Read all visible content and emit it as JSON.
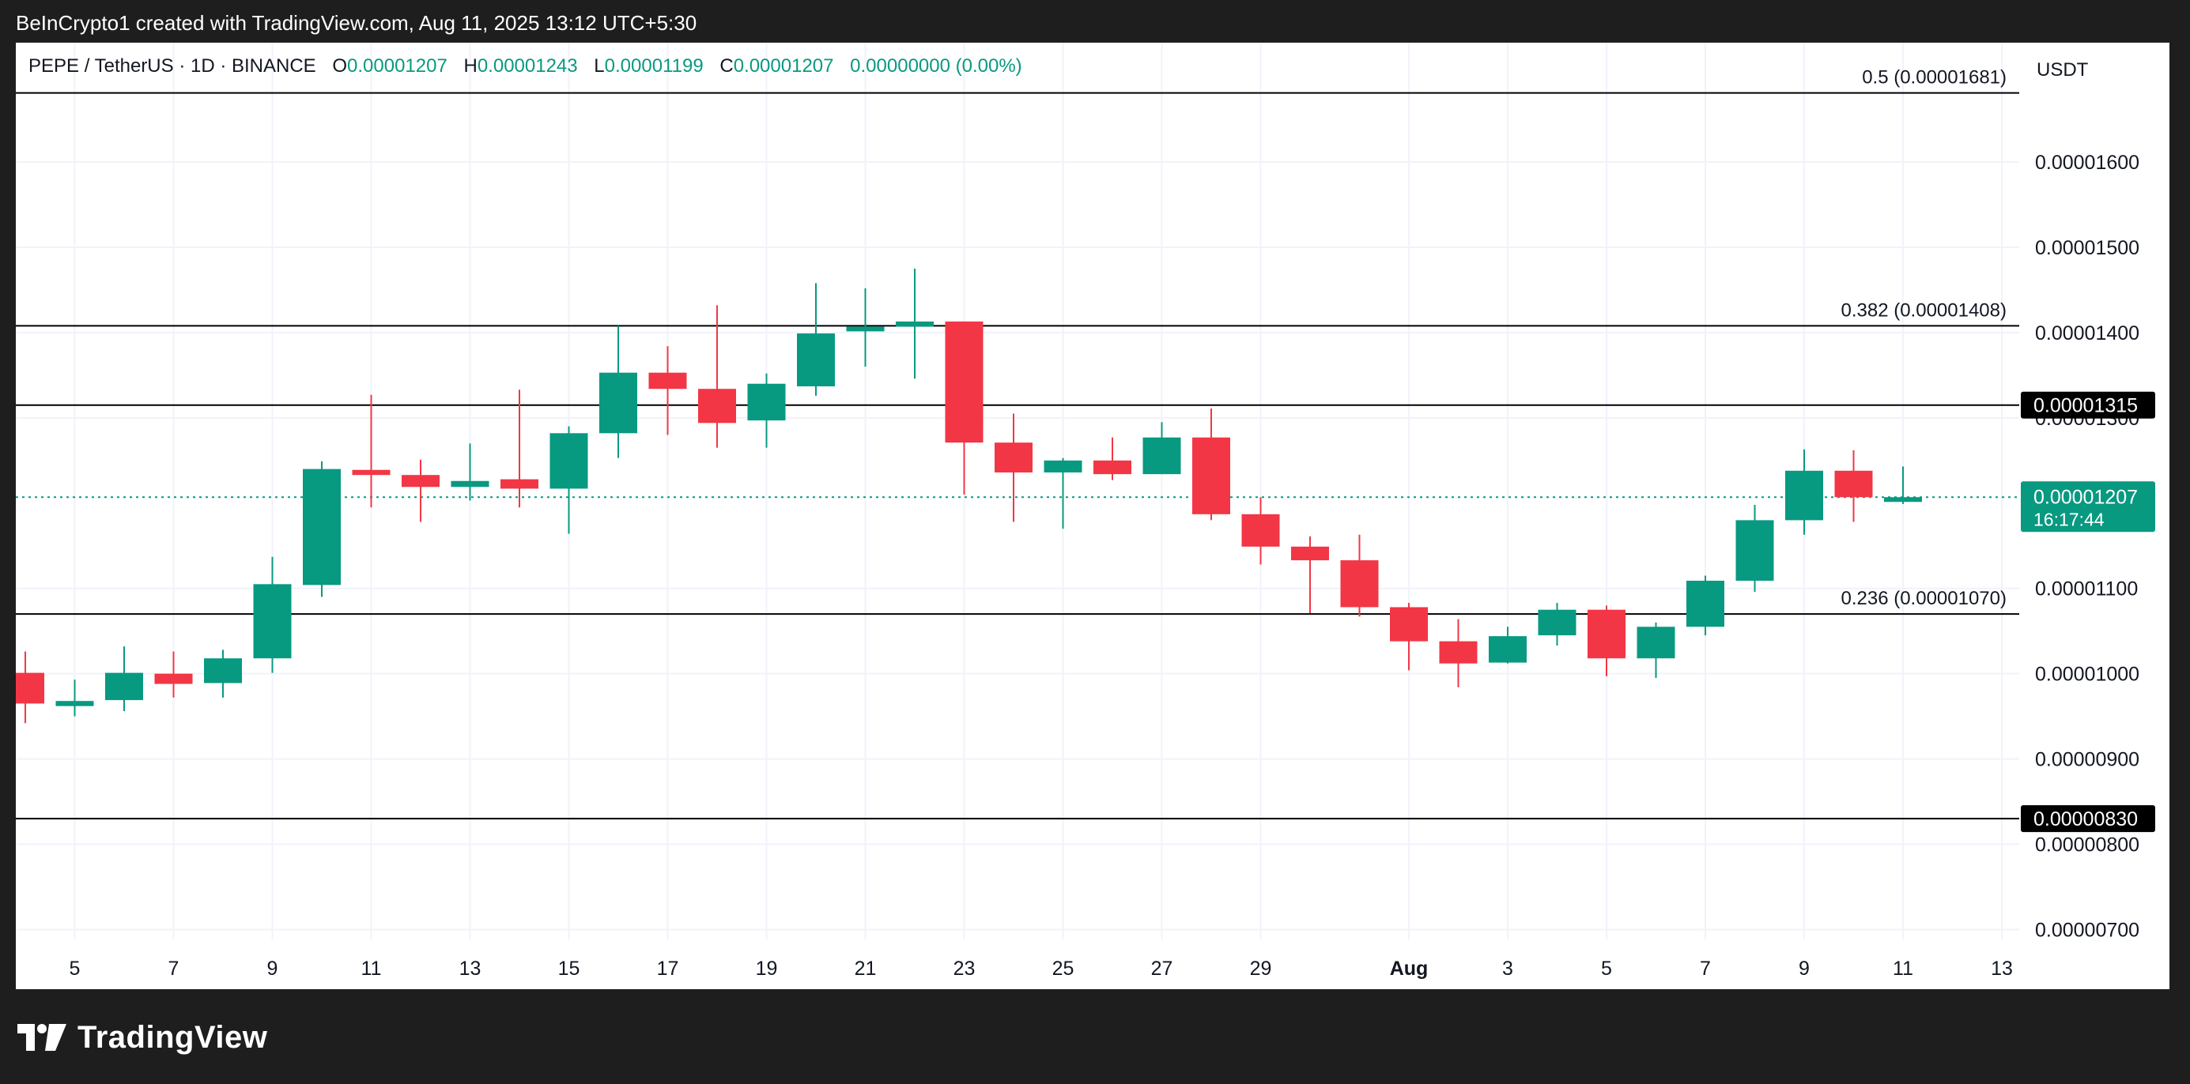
{
  "caption": "BeInCrypto1 created with TradingView.com, Aug 11, 2025 13:12 UTC+5:30",
  "legend": {
    "symbol": "PEPE / TetherUS · 1D · BINANCE",
    "o_label": "O",
    "o_value": "0.00001207",
    "h_label": "H",
    "h_value": "0.00001243",
    "l_label": "L",
    "l_value": "0.00001199",
    "c_label": "C",
    "c_value": "0.00001207",
    "change": "0.00000000 (0.00%)"
  },
  "brand": {
    "name": "TradingView",
    "icon": "tradingview-logo-icon"
  },
  "colors": {
    "up": "#089981",
    "down": "#f23645",
    "grid": "#f0f3fa",
    "text": "#131722",
    "background": "#ffffff",
    "frame": "#1e1e1e"
  },
  "chart_data": {
    "type": "candlestick",
    "title": "",
    "xlabel": "",
    "ylabel": "",
    "currency_label": "USDT",
    "ylim": [
      6.3e-06,
      1.74e-05
    ],
    "grid": true,
    "y_ticks": [
      "0.00001600",
      "0.00001500",
      "0.00001400",
      "0.00001300",
      "0.00001100",
      "0.00001000",
      "0.00000900",
      "0.00000800",
      "0.00000700"
    ],
    "x_ticks": [
      {
        "day": 1,
        "label": "5"
      },
      {
        "day": 3,
        "label": "7"
      },
      {
        "day": 5,
        "label": "9"
      },
      {
        "day": 7,
        "label": "11"
      },
      {
        "day": 9,
        "label": "13"
      },
      {
        "day": 11,
        "label": "15"
      },
      {
        "day": 13,
        "label": "17"
      },
      {
        "day": 15,
        "label": "19"
      },
      {
        "day": 17,
        "label": "21"
      },
      {
        "day": 19,
        "label": "23"
      },
      {
        "day": 21,
        "label": "25"
      },
      {
        "day": 23,
        "label": "27"
      },
      {
        "day": 25,
        "label": "29"
      },
      {
        "day": 28,
        "label": "Aug"
      },
      {
        "day": 30,
        "label": "3"
      },
      {
        "day": 32,
        "label": "5"
      },
      {
        "day": 34,
        "label": "7"
      },
      {
        "day": 36,
        "label": "9"
      },
      {
        "day": 38,
        "label": "11"
      },
      {
        "day": 40,
        "label": "13"
      }
    ],
    "candles": [
      {
        "day": 0,
        "o": 1.001e-05,
        "h": 1.026e-05,
        "l": 9.42e-06,
        "c": 9.65e-06
      },
      {
        "day": 1,
        "o": 9.62e-06,
        "h": 9.93e-06,
        "l": 9.5e-06,
        "c": 9.68e-06
      },
      {
        "day": 2,
        "o": 9.69e-06,
        "h": 1.032e-05,
        "l": 9.56e-06,
        "c": 1.001e-05
      },
      {
        "day": 3,
        "o": 1e-05,
        "h": 1.026e-05,
        "l": 9.72e-06,
        "c": 9.88e-06
      },
      {
        "day": 4,
        "o": 9.89e-06,
        "h": 1.028e-05,
        "l": 9.72e-06,
        "c": 1.018e-05
      },
      {
        "day": 5,
        "o": 1.018e-05,
        "h": 1.137e-05,
        "l": 1.001e-05,
        "c": 1.105e-05
      },
      {
        "day": 6,
        "o": 1.104e-05,
        "h": 1.249e-05,
        "l": 1.09e-05,
        "c": 1.24e-05
      },
      {
        "day": 7,
        "o": 1.239e-05,
        "h": 1.327e-05,
        "l": 1.195e-05,
        "c": 1.233e-05
      },
      {
        "day": 8,
        "o": 1.233e-05,
        "h": 1.251e-05,
        "l": 1.178e-05,
        "c": 1.219e-05
      },
      {
        "day": 9,
        "o": 1.219e-05,
        "h": 1.27e-05,
        "l": 1.203e-05,
        "c": 1.226e-05
      },
      {
        "day": 10,
        "o": 1.228e-05,
        "h": 1.333e-05,
        "l": 1.195e-05,
        "c": 1.217e-05
      },
      {
        "day": 11,
        "o": 1.217e-05,
        "h": 1.29e-05,
        "l": 1.164e-05,
        "c": 1.282e-05
      },
      {
        "day": 12,
        "o": 1.282e-05,
        "h": 1.408e-05,
        "l": 1.253e-05,
        "c": 1.353e-05
      },
      {
        "day": 13,
        "o": 1.353e-05,
        "h": 1.384e-05,
        "l": 1.28e-05,
        "c": 1.334e-05
      },
      {
        "day": 14,
        "o": 1.334e-05,
        "h": 1.432e-05,
        "l": 1.265e-05,
        "c": 1.294e-05
      },
      {
        "day": 15,
        "o": 1.297e-05,
        "h": 1.352e-05,
        "l": 1.265e-05,
        "c": 1.34e-05
      },
      {
        "day": 16,
        "o": 1.337e-05,
        "h": 1.458e-05,
        "l": 1.326e-05,
        "c": 1.399e-05
      },
      {
        "day": 17,
        "o": 1.402e-05,
        "h": 1.452e-05,
        "l": 1.36e-05,
        "c": 1.407e-05
      },
      {
        "day": 18,
        "o": 1.407e-05,
        "h": 1.475e-05,
        "l": 1.346e-05,
        "c": 1.413e-05
      },
      {
        "day": 19,
        "o": 1.413e-05,
        "h": 1.413e-05,
        "l": 1.21e-05,
        "c": 1.271e-05
      },
      {
        "day": 20,
        "o": 1.271e-05,
        "h": 1.305e-05,
        "l": 1.178e-05,
        "c": 1.236e-05
      },
      {
        "day": 21,
        "o": 1.236e-05,
        "h": 1.253e-05,
        "l": 1.17e-05,
        "c": 1.25e-05
      },
      {
        "day": 22,
        "o": 1.25e-05,
        "h": 1.277e-05,
        "l": 1.227e-05,
        "c": 1.234e-05
      },
      {
        "day": 23,
        "o": 1.234e-05,
        "h": 1.295e-05,
        "l": 1.234e-05,
        "c": 1.277e-05
      },
      {
        "day": 24,
        "o": 1.277e-05,
        "h": 1.311e-05,
        "l": 1.18e-05,
        "c": 1.187e-05
      },
      {
        "day": 25,
        "o": 1.187e-05,
        "h": 1.207e-05,
        "l": 1.128e-05,
        "c": 1.149e-05
      },
      {
        "day": 26,
        "o": 1.149e-05,
        "h": 1.161e-05,
        "l": 1.071e-05,
        "c": 1.133e-05
      },
      {
        "day": 27,
        "o": 1.133e-05,
        "h": 1.163e-05,
        "l": 1.067e-05,
        "c": 1.078e-05
      },
      {
        "day": 28,
        "o": 1.078e-05,
        "h": 1.083e-05,
        "l": 1.004e-05,
        "c": 1.038e-05
      },
      {
        "day": 29,
        "o": 1.038e-05,
        "h": 1.064e-05,
        "l": 9.84e-06,
        "c": 1.012e-05
      },
      {
        "day": 30,
        "o": 1.013e-05,
        "h": 1.055e-05,
        "l": 1.012e-05,
        "c": 1.044e-05
      },
      {
        "day": 31,
        "o": 1.045e-05,
        "h": 1.083e-05,
        "l": 1.033e-05,
        "c": 1.075e-05
      },
      {
        "day": 32,
        "o": 1.075e-05,
        "h": 1.08e-05,
        "l": 9.97e-06,
        "c": 1.018e-05
      },
      {
        "day": 33,
        "o": 1.018e-05,
        "h": 1.06e-05,
        "l": 9.95e-06,
        "c": 1.055e-05
      },
      {
        "day": 34,
        "o": 1.055e-05,
        "h": 1.115e-05,
        "l": 1.045e-05,
        "c": 1.109e-05
      },
      {
        "day": 35,
        "o": 1.109e-05,
        "h": 1.198e-05,
        "l": 1.096e-05,
        "c": 1.18e-05
      },
      {
        "day": 36,
        "o": 1.18e-05,
        "h": 1.263e-05,
        "l": 1.163e-05,
        "c": 1.238e-05
      },
      {
        "day": 37,
        "o": 1.238e-05,
        "h": 1.262e-05,
        "l": 1.178e-05,
        "c": 1.207e-05
      },
      {
        "day": 38,
        "o": 1.207e-05,
        "h": 1.243e-05,
        "l": 1.199e-05,
        "c": 1.207e-05
      }
    ],
    "fib_levels": [
      {
        "price": 1.681e-05,
        "label": "0.5 (0.00001681)"
      },
      {
        "price": 1.408e-05,
        "label": "0.382 (0.00001408)"
      },
      {
        "price": 1.07e-05,
        "label": "0.236 (0.00001070)"
      }
    ],
    "horizontal_levels": [
      {
        "price": 1.315e-05,
        "label": "0.00001315"
      },
      {
        "price": 8.3e-06,
        "label": "0.00000830"
      }
    ],
    "current_price": {
      "price": 1.207e-05,
      "label": "0.00001207",
      "countdown": "16:17:44"
    }
  }
}
